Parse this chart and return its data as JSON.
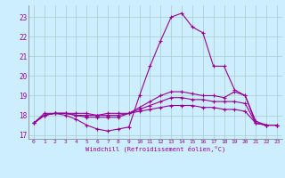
{
  "xlabel": "Windchill (Refroidissement éolien,°C)",
  "x": [
    0,
    1,
    2,
    3,
    4,
    5,
    6,
    7,
    8,
    9,
    10,
    11,
    12,
    13,
    14,
    15,
    16,
    17,
    18,
    19,
    20,
    21,
    22,
    23
  ],
  "line1": [
    17.6,
    18.1,
    18.1,
    18.0,
    17.8,
    17.5,
    17.3,
    17.2,
    17.3,
    17.4,
    19.0,
    20.5,
    21.8,
    23.0,
    23.2,
    22.5,
    22.2,
    20.5,
    20.5,
    19.3,
    19.0,
    17.6,
    17.5,
    17.5
  ],
  "line2": [
    17.6,
    18.0,
    18.1,
    18.1,
    18.0,
    17.9,
    17.9,
    17.9,
    17.9,
    18.1,
    18.4,
    18.7,
    19.0,
    19.2,
    19.2,
    19.1,
    19.0,
    19.0,
    18.9,
    19.2,
    19.0,
    17.7,
    17.5,
    17.5
  ],
  "line3": [
    17.6,
    18.0,
    18.1,
    18.1,
    18.0,
    18.0,
    18.0,
    18.0,
    18.0,
    18.1,
    18.3,
    18.5,
    18.7,
    18.9,
    18.9,
    18.8,
    18.8,
    18.7,
    18.7,
    18.7,
    18.6,
    17.6,
    17.5,
    17.5
  ],
  "line4": [
    17.6,
    18.0,
    18.1,
    18.1,
    18.1,
    18.1,
    18.0,
    18.1,
    18.1,
    18.1,
    18.2,
    18.3,
    18.4,
    18.5,
    18.5,
    18.5,
    18.4,
    18.4,
    18.3,
    18.3,
    18.2,
    17.6,
    17.5,
    17.5
  ],
  "line_color": "#990099",
  "bg_color": "#cceeff",
  "grid_color": "#aacccc",
  "ylim": [
    16.8,
    23.6
  ],
  "xlim": [
    -0.5,
    23.5
  ],
  "yticks": [
    17,
    18,
    19,
    20,
    21,
    22,
    23
  ],
  "xticks": [
    0,
    1,
    2,
    3,
    4,
    5,
    6,
    7,
    8,
    9,
    10,
    11,
    12,
    13,
    14,
    15,
    16,
    17,
    18,
    19,
    20,
    21,
    22,
    23
  ]
}
